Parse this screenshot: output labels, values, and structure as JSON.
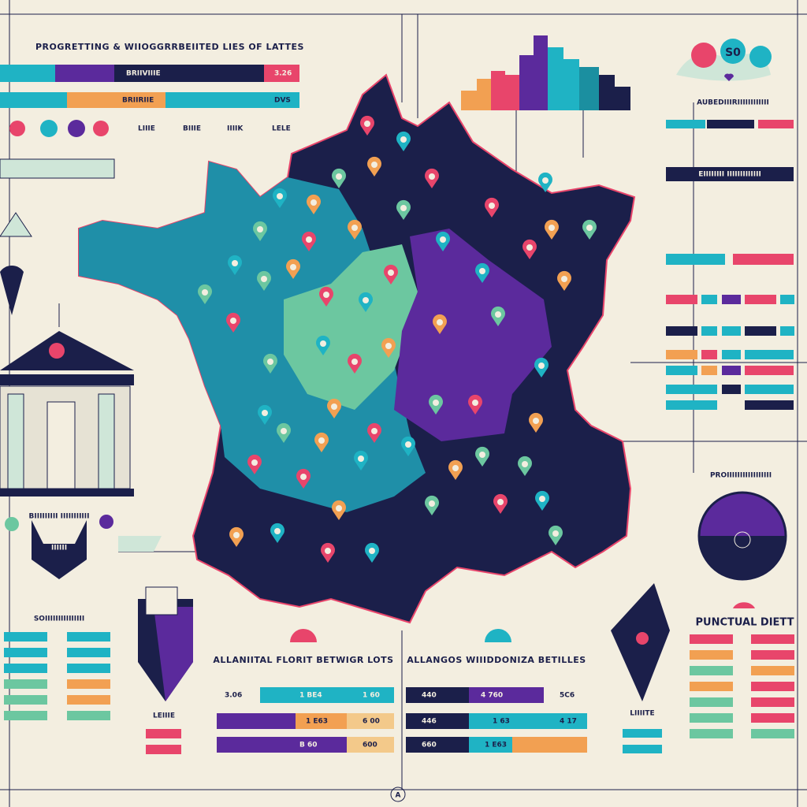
{
  "header": {
    "title": "PROGRETTING & WIIOGGRRBEIITED LIES OF LATTES"
  },
  "top_bars": {
    "row1": {
      "label": "BRIIVIIIE",
      "value": "3.26"
    },
    "row2": {
      "label": "BRIIRIIE",
      "value": "DVS"
    },
    "legend": [
      "LIIIE",
      "BIIIE",
      "IIIIK",
      "LELE"
    ]
  },
  "top_right": {
    "badge": "S0",
    "heading": "AUBEDIIIRIIIIIIIIIIII",
    "subheading": "EIIIIIIII IIIIIIIIIIIII"
  },
  "left_panel": {
    "caption": "BIIIIIIIII IIIIIIIIIII",
    "plate": "IIIIII",
    "section": "SOIIIIIIIIIIIIIII",
    "footer": "LEIIIE"
  },
  "center_left": {
    "title": "ALLANIITAL FLORIT BETWIGR LOTS",
    "rows": [
      [
        "3.06",
        "1 BE4",
        "1 60"
      ],
      [
        "",
        "1 E63",
        "6 00"
      ],
      [
        "",
        "B 60",
        "600"
      ]
    ]
  },
  "center_right": {
    "title": "ALLANGOS WIIIDDONIZA BETILLES",
    "rows": [
      [
        "440",
        "4 760",
        "5C6"
      ],
      [
        "446",
        "1 63",
        "4 17"
      ],
      [
        "660",
        "1 E63",
        ""
      ]
    ]
  },
  "right_panel": {
    "pie_heading": "PROIIIIIIIIIIIIIIIII",
    "title": "PUNCTUAL DIETT",
    "footer": "LIIIITE"
  },
  "footer": {
    "mark": "A"
  }
}
